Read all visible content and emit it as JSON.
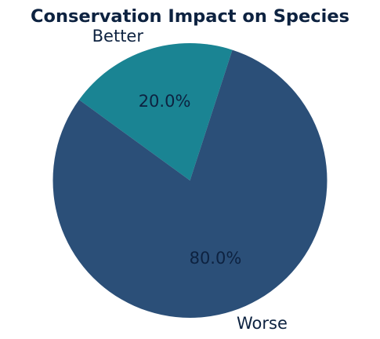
{
  "chart_data": {
    "type": "pie",
    "title": "Conservation Impact on Species",
    "categories": [
      "Better",
      "Worse"
    ],
    "values": [
      20.0,
      80.0
    ],
    "value_labels": [
      "20.0%",
      "80.0%"
    ],
    "colors": [
      "#1a8493",
      "#2b4f78"
    ],
    "text_color": "#0d2240",
    "start_angle_deg": 72,
    "direction": "counterclockwise",
    "legend": "none"
  }
}
